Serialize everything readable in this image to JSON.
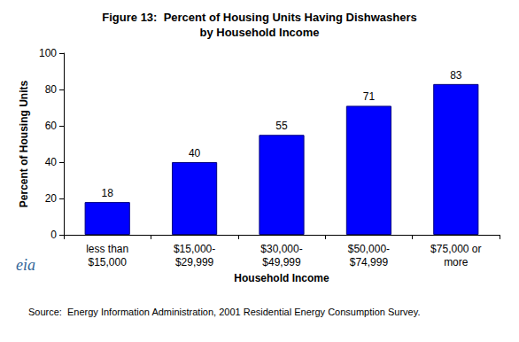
{
  "chart_data": {
    "type": "bar",
    "title": "Figure 13:  Percent of Housing Units Having Dishwashers\nby Household Income",
    "x_label": "Household Income",
    "y_label": "Percent of Housing Units",
    "categories": [
      "less than $15,000",
      "$15,000-$29,999",
      "$30,000-$49,999",
      "$50,000-$74,999",
      "$75,000 or more"
    ],
    "values": [
      18,
      40,
      55,
      71,
      83
    ],
    "color": "#0000ff",
    "ylim": [
      0,
      100
    ],
    "yticks": [
      0,
      20,
      40,
      60,
      80,
      100
    ],
    "grid": false,
    "data_labels": true,
    "logo_text": "eia",
    "source": "Source:  Energy Information Administration, 2001 Residential Energy Consumption Survey."
  }
}
